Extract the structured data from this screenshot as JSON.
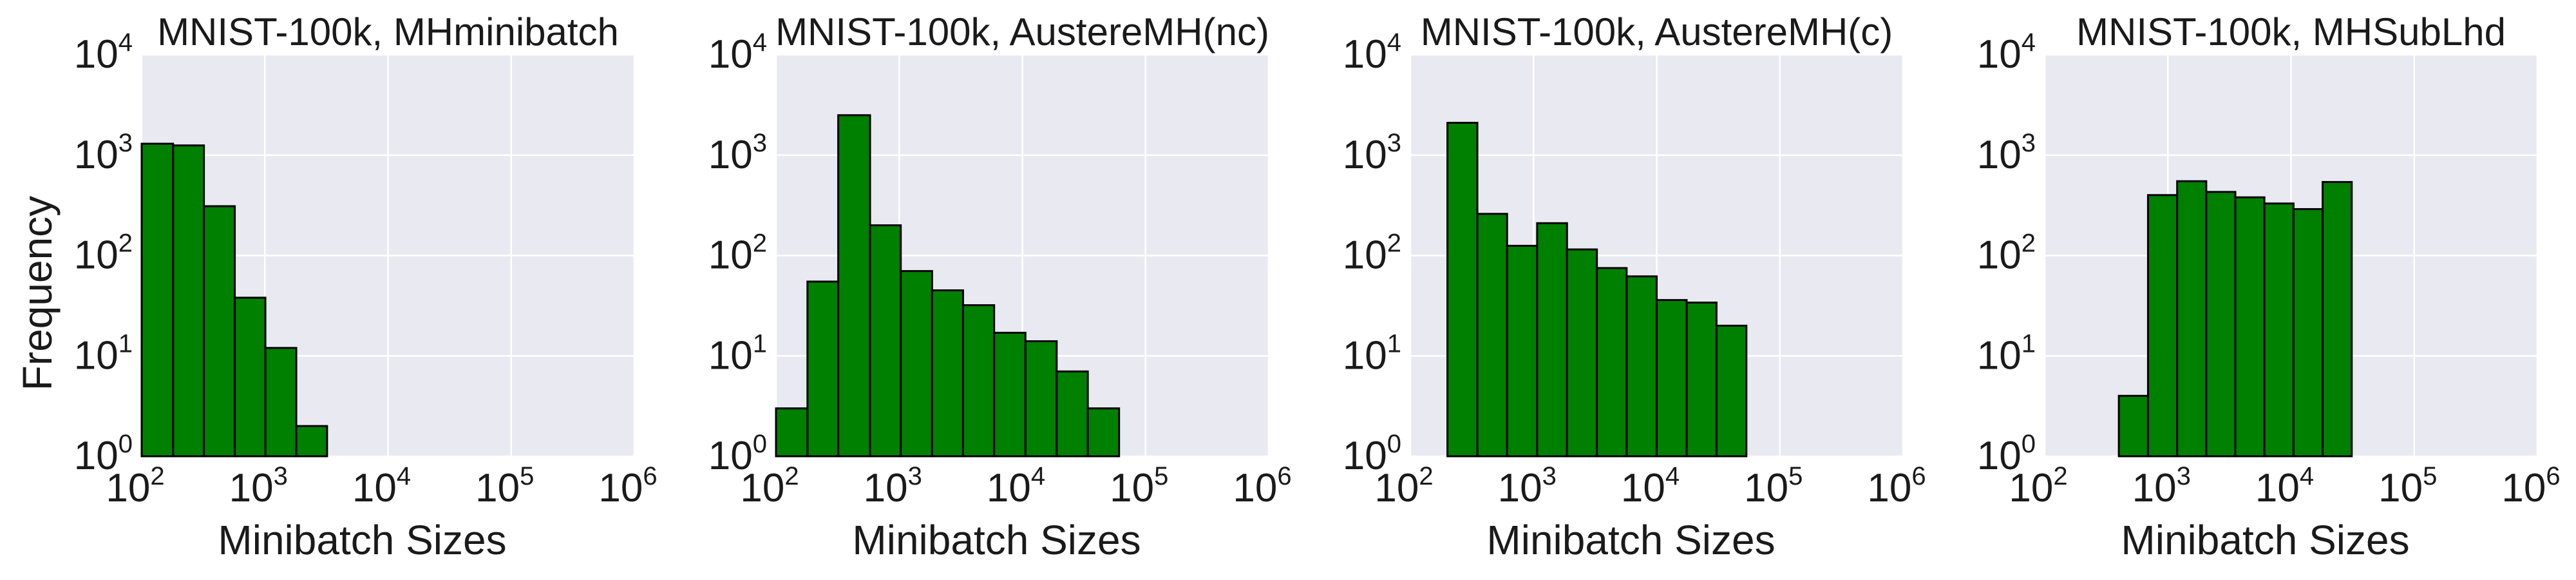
{
  "figure": {
    "ylabel": "Frequency",
    "bar_color": "#008000",
    "background_color": "#e9e9f1"
  },
  "chart_data": [
    {
      "type": "histogram",
      "title": "MNIST-100k, MHminibatch",
      "xlabel": "Minibatch Sizes",
      "ylabel": "Frequency",
      "xscale": "log",
      "yscale": "log",
      "xlim": [
        100,
        1000000
      ],
      "ylim": [
        1,
        10000
      ],
      "xticks": [
        100,
        1000,
        10000,
        100000,
        1000000
      ],
      "yticks": [
        1,
        10,
        100,
        1000,
        10000
      ],
      "grid": true,
      "bins": [
        {
          "x0": 100,
          "x1": 180,
          "count": 1300
        },
        {
          "x0": 180,
          "x1": 320,
          "count": 1250
        },
        {
          "x0": 320,
          "x1": 570,
          "count": 310
        },
        {
          "x0": 570,
          "x1": 1010,
          "count": 38
        },
        {
          "x0": 1010,
          "x1": 1800,
          "count": 12
        },
        {
          "x0": 1800,
          "x1": 3200,
          "count": 2
        }
      ]
    },
    {
      "type": "histogram",
      "title": "MNIST-100k, AustereMH(nc)",
      "xlabel": "Minibatch Sizes",
      "ylabel": "",
      "xscale": "log",
      "yscale": "log",
      "xlim": [
        100,
        1000000
      ],
      "ylim": [
        1,
        10000
      ],
      "xticks": [
        100,
        1000,
        10000,
        100000,
        1000000
      ],
      "yticks": [
        1,
        10,
        100,
        1000,
        10000
      ],
      "grid": true,
      "bins": [
        {
          "x0": 100,
          "x1": 180,
          "count": 3
        },
        {
          "x0": 180,
          "x1": 320,
          "count": 55
        },
        {
          "x0": 320,
          "x1": 580,
          "count": 2500
        },
        {
          "x0": 580,
          "x1": 1030,
          "count": 200
        },
        {
          "x0": 1030,
          "x1": 1850,
          "count": 70
        },
        {
          "x0": 1850,
          "x1": 3300,
          "count": 45
        },
        {
          "x0": 3300,
          "x1": 5900,
          "count": 32
        },
        {
          "x0": 5900,
          "x1": 10600,
          "count": 17
        },
        {
          "x0": 10600,
          "x1": 19000,
          "count": 14
        },
        {
          "x0": 19000,
          "x1": 34000,
          "count": 7
        },
        {
          "x0": 34000,
          "x1": 61000,
          "count": 3
        }
      ]
    },
    {
      "type": "histogram",
      "title": "MNIST-100k, AustereMH(c)",
      "xlabel": "Minibatch Sizes",
      "ylabel": "",
      "xscale": "log",
      "yscale": "log",
      "xlim": [
        100,
        1000000
      ],
      "ylim": [
        1,
        10000
      ],
      "xticks": [
        100,
        1000,
        10000,
        100000,
        1000000
      ],
      "yticks": [
        1,
        10,
        100,
        1000,
        10000
      ],
      "grid": true,
      "bins": [
        {
          "x0": 200,
          "x1": 350,
          "count": 2100
        },
        {
          "x0": 350,
          "x1": 610,
          "count": 260
        },
        {
          "x0": 610,
          "x1": 1070,
          "count": 125
        },
        {
          "x0": 1070,
          "x1": 1870,
          "count": 210
        },
        {
          "x0": 1870,
          "x1": 3270,
          "count": 115
        },
        {
          "x0": 3270,
          "x1": 5700,
          "count": 75
        },
        {
          "x0": 5700,
          "x1": 10000,
          "count": 62
        },
        {
          "x0": 10000,
          "x1": 17500,
          "count": 36
        },
        {
          "x0": 17500,
          "x1": 30600,
          "count": 34
        },
        {
          "x0": 30600,
          "x1": 53500,
          "count": 20
        }
      ]
    },
    {
      "type": "histogram",
      "title": "MNIST-100k, MHSubLhd",
      "xlabel": "Minibatch Sizes",
      "ylabel": "",
      "xscale": "log",
      "yscale": "log",
      "xlim": [
        100,
        1000000
      ],
      "ylim": [
        1,
        10000
      ],
      "xticks": [
        100,
        1000,
        10000,
        100000,
        1000000
      ],
      "yticks": [
        1,
        10,
        100,
        1000,
        10000
      ],
      "grid": true,
      "bins": [
        {
          "x0": 400,
          "x1": 690,
          "count": 4
        },
        {
          "x0": 690,
          "x1": 1190,
          "count": 400
        },
        {
          "x0": 1190,
          "x1": 2050,
          "count": 550
        },
        {
          "x0": 2050,
          "x1": 3530,
          "count": 430
        },
        {
          "x0": 3530,
          "x1": 6080,
          "count": 380
        },
        {
          "x0": 6080,
          "x1": 10480,
          "count": 330
        },
        {
          "x0": 10480,
          "x1": 18050,
          "count": 290
        },
        {
          "x0": 18050,
          "x1": 31100,
          "count": 540
        }
      ]
    }
  ]
}
